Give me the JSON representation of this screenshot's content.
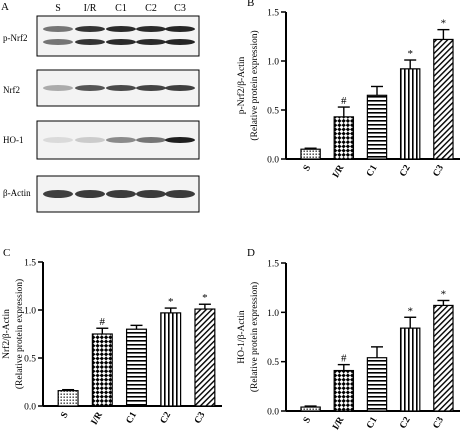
{
  "figure": {
    "blot": {
      "panel_label": "A",
      "lanes": [
        "S",
        "I/R",
        "C1",
        "C2",
        "C3"
      ],
      "rows": [
        {
          "name": "p-Nrf2",
          "intensity": [
            0.55,
            0.85,
            0.9,
            0.9,
            0.92
          ]
        },
        {
          "name": "Nrf2",
          "intensity": [
            0.3,
            0.7,
            0.75,
            0.78,
            0.8
          ]
        },
        {
          "name": "HO-1",
          "intensity": [
            0.08,
            0.15,
            0.45,
            0.55,
            0.95
          ]
        },
        {
          "name": "β-Actin",
          "intensity": [
            0.8,
            0.82,
            0.82,
            0.82,
            0.82
          ]
        }
      ]
    }
  },
  "chart_data": [
    {
      "type": "bar",
      "panel_label": "B",
      "categories": [
        "S",
        "I/R",
        "C1",
        "C2",
        "C3"
      ],
      "values": [
        0.1,
        0.43,
        0.65,
        0.92,
        1.22
      ],
      "errors": [
        0.01,
        0.1,
        0.09,
        0.09,
        0.1
      ],
      "significance": [
        "",
        "#",
        "",
        "*",
        "*"
      ],
      "ylabel": "p-Nrf2/β-Actin",
      "ylabel2": "(Relative protein expression)",
      "ylim": [
        0,
        1.5
      ],
      "yticks": [
        "0.0",
        "0.5",
        "1.0",
        "1.5"
      ]
    },
    {
      "type": "bar",
      "panel_label": "C",
      "categories": [
        "S",
        "I/R",
        "C1",
        "C2",
        "C3"
      ],
      "values": [
        0.16,
        0.75,
        0.8,
        0.97,
        1.01
      ],
      "errors": [
        0.01,
        0.06,
        0.04,
        0.05,
        0.05
      ],
      "significance": [
        "",
        "#",
        "",
        "*",
        "*"
      ],
      "ylabel": "Nrf2/β-Actin",
      "ylabel2": "(Relative protein expression)",
      "ylim": [
        0,
        1.5
      ],
      "yticks": [
        "0.0",
        "0.5",
        "1.0",
        "1.5"
      ]
    },
    {
      "type": "bar",
      "panel_label": "D",
      "categories": [
        "S",
        "I/R",
        "C1",
        "C2",
        "C3"
      ],
      "values": [
        0.04,
        0.41,
        0.54,
        0.84,
        1.07
      ],
      "errors": [
        0.01,
        0.06,
        0.11,
        0.11,
        0.05
      ],
      "significance": [
        "",
        "#",
        "",
        "*",
        "*"
      ],
      "ylabel": "HO-1/β-Actin",
      "ylabel2": "(Relative protein expression)",
      "ylim": [
        0,
        1.5
      ],
      "yticks": [
        "0.0",
        "0.5",
        "1.0",
        "1.5"
      ]
    }
  ]
}
